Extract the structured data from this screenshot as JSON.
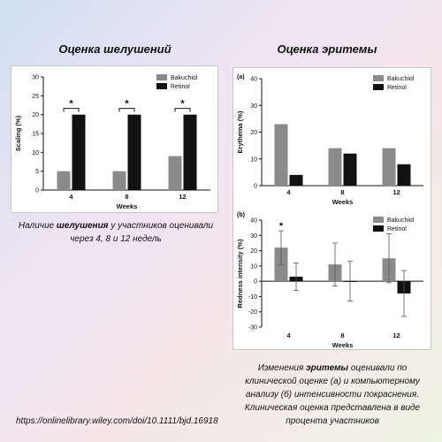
{
  "headings": {
    "left": "Оценка шелушений",
    "right": "Оценка эритемы"
  },
  "captions": {
    "left_pre": "Наличие ",
    "left_bold": "шелушения",
    "left_post": " у участников оценивали через 4, 8 и 12 недель",
    "right_pre": "Изменения ",
    "right_bold": "эритемы",
    "right_post": " оценивали по клинической оценке (а) и компьютерному анализу (б) интенсивности покраснения. Клиническая оценка представлена в виде процента участников"
  },
  "source": "https://onlinelibrary.wiley.com/doi/10.1111/bjd.16918",
  "colors": {
    "bakuchiol": "#8a8a8a",
    "retinol": "#111111"
  },
  "chart_data": [
    {
      "id": "scaling",
      "type": "bar",
      "panel_label": "",
      "categories": [
        "4",
        "8",
        "12"
      ],
      "series": [
        {
          "name": "Bakuchiol",
          "values": [
            5,
            5,
            9
          ]
        },
        {
          "name": "Retinol",
          "values": [
            20,
            20,
            20
          ]
        }
      ],
      "xlabel": "Weeks",
      "ylabel": "Scaling (%)",
      "ylim": [
        0,
        30
      ],
      "yticks": [
        0,
        5,
        10,
        15,
        20,
        25,
        30
      ],
      "significance": [
        "*",
        "*",
        "*"
      ],
      "legend": "top-right"
    },
    {
      "id": "erythema",
      "type": "bar",
      "panel_label": "(a)",
      "categories": [
        "4",
        "8",
        "12"
      ],
      "series": [
        {
          "name": "Bakuchiol",
          "values": [
            23,
            14,
            14
          ]
        },
        {
          "name": "Retinol",
          "values": [
            4,
            12,
            8
          ]
        }
      ],
      "xlabel": "Weeks",
      "ylabel": "Erythema (%)",
      "ylim": [
        0,
        40
      ],
      "yticks": [
        0,
        10,
        20,
        30,
        40
      ],
      "legend": "top-right"
    },
    {
      "id": "redness",
      "type": "bar",
      "panel_label": "(b)",
      "categories": [
        "4",
        "8",
        "12"
      ],
      "series": [
        {
          "name": "Bakuchiol",
          "values": [
            22,
            11,
            15
          ],
          "errors": [
            11,
            14,
            16
          ]
        },
        {
          "name": "Retinol",
          "values": [
            3,
            0,
            -8
          ],
          "errors": [
            9,
            13,
            15
          ]
        }
      ],
      "xlabel": "Weeks",
      "ylabel": "Redness intensity (%)",
      "ylim": [
        -30,
        40
      ],
      "yticks": [
        -30,
        -20,
        -10,
        0,
        10,
        20,
        30,
        40
      ],
      "significance": [
        "*",
        "",
        ""
      ],
      "legend": "top-right"
    }
  ]
}
